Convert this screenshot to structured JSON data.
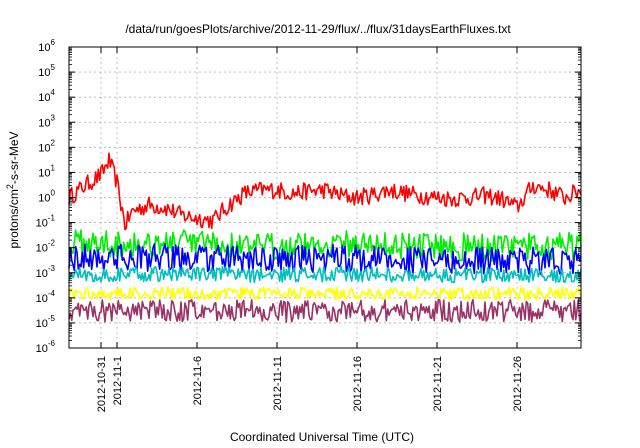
{
  "chart_data": {
    "type": "line",
    "title": "/data/run/goesPlots/archive/2012-11-29/flux/../flux/31daysEarthFluxes.txt",
    "xlabel": "Coordinated Universal Time (UTC)",
    "ylabel": {
      "parts": [
        {
          "text": "protons/cm",
          "sup": false
        },
        {
          "text": "2",
          "sup": true
        },
        {
          "text": "-s-sr-MeV",
          "sup": false
        }
      ]
    },
    "yscale": "log",
    "ylim_exponent": [
      -6,
      6
    ],
    "y_ticks": [
      {
        "base": "10",
        "exp": "-6"
      },
      {
        "base": "10",
        "exp": "-5"
      },
      {
        "base": "10",
        "exp": "-4"
      },
      {
        "base": "10",
        "exp": "-3"
      },
      {
        "base": "10",
        "exp": "-2"
      },
      {
        "base": "10",
        "exp": "-1"
      },
      {
        "base": "10",
        "exp": "0"
      },
      {
        "base": "10",
        "exp": "1"
      },
      {
        "base": "10",
        "exp": "2"
      },
      {
        "base": "10",
        "exp": "3"
      },
      {
        "base": "10",
        "exp": "4"
      },
      {
        "base": "10",
        "exp": "5"
      },
      {
        "base": "10",
        "exp": "6"
      }
    ],
    "xlim": [
      "2012-10-29",
      "2012-11-30"
    ],
    "x_ticks": [
      "2012-10-31",
      "2012-11-1",
      "2012-11-6",
      "2012-11-11",
      "2012-11-16",
      "2012-11-21",
      "2012-11-26"
    ],
    "grid": true,
    "series": [
      {
        "color": "#ff0000",
        "values": [
          [
            "2012-10-29",
            1.0
          ],
          [
            "2012-10-30",
            3.0
          ],
          [
            "2012-10-31",
            8.0
          ],
          [
            "2012-10-31T12",
            30.0
          ],
          [
            "2012-11-01",
            4.0
          ],
          [
            "2012-11-01T12",
            0.08
          ],
          [
            "2012-11-02",
            0.3
          ],
          [
            "2012-11-03",
            0.5
          ],
          [
            "2012-11-04",
            0.4
          ],
          [
            "2012-11-05",
            0.2
          ],
          [
            "2012-11-06",
            0.15
          ],
          [
            "2012-11-07",
            0.12
          ],
          [
            "2012-11-08",
            0.5
          ],
          [
            "2012-11-09",
            1.5
          ],
          [
            "2012-11-10",
            2.0
          ],
          [
            "2012-11-11",
            2.0
          ],
          [
            "2012-11-12",
            1.5
          ],
          [
            "2012-11-13",
            1.8
          ],
          [
            "2012-11-14",
            2.0
          ],
          [
            "2012-11-15",
            1.2
          ],
          [
            "2012-11-16",
            1.0
          ],
          [
            "2012-11-17",
            1.3
          ],
          [
            "2012-11-18",
            2.0
          ],
          [
            "2012-11-19",
            1.5
          ],
          [
            "2012-11-20",
            1.2
          ],
          [
            "2012-11-21",
            1.0
          ],
          [
            "2012-11-22",
            0.9
          ],
          [
            "2012-11-23",
            1.0
          ],
          [
            "2012-11-24",
            1.2
          ],
          [
            "2012-11-25",
            0.9
          ],
          [
            "2012-11-26",
            0.4
          ],
          [
            "2012-11-27",
            3.0
          ],
          [
            "2012-11-28",
            2.0
          ],
          [
            "2012-11-29",
            1.0
          ],
          [
            "2012-11-30",
            2.0
          ]
        ]
      },
      {
        "color": "#00ee00",
        "values": [
          [
            "2012-10-29",
            0.015
          ],
          [
            "2012-11-05",
            0.015
          ],
          [
            "2012-11-10",
            0.01
          ],
          [
            "2012-11-15",
            0.015
          ],
          [
            "2012-11-20",
            0.012
          ],
          [
            "2012-11-25",
            0.01
          ],
          [
            "2012-11-30",
            0.012
          ]
        ]
      },
      {
        "color": "#0000ff",
        "values": [
          [
            "2012-10-29",
            0.004
          ],
          [
            "2012-11-05",
            0.004
          ],
          [
            "2012-11-10",
            0.003
          ],
          [
            "2012-11-15",
            0.004
          ],
          [
            "2012-11-20",
            0.003
          ],
          [
            "2012-11-25",
            0.003
          ],
          [
            "2012-11-30",
            0.003
          ]
        ]
      },
      {
        "color": "#00bfbf",
        "values": [
          [
            "2012-10-29",
            0.0008
          ],
          [
            "2012-11-05",
            0.0009
          ],
          [
            "2012-11-10",
            0.0008
          ],
          [
            "2012-11-15",
            0.0009
          ],
          [
            "2012-11-20",
            0.0008
          ],
          [
            "2012-11-25",
            0.0008
          ],
          [
            "2012-11-30",
            0.0008
          ]
        ]
      },
      {
        "color": "#ffff00",
        "values": [
          [
            "2012-10-29",
            0.00015
          ],
          [
            "2012-11-05",
            0.00015
          ],
          [
            "2012-11-10",
            0.00015
          ],
          [
            "2012-11-15",
            0.00015
          ],
          [
            "2012-11-20",
            0.00015
          ],
          [
            "2012-11-25",
            0.00015
          ],
          [
            "2012-11-30",
            0.00015
          ]
        ]
      },
      {
        "color": "#993366",
        "values": [
          [
            "2012-10-29",
            3e-05
          ],
          [
            "2012-11-05",
            3e-05
          ],
          [
            "2012-11-10",
            3e-05
          ],
          [
            "2012-11-15",
            3e-05
          ],
          [
            "2012-11-20",
            3e-05
          ],
          [
            "2012-11-25",
            3e-05
          ],
          [
            "2012-11-30",
            3e-05
          ]
        ]
      }
    ]
  }
}
